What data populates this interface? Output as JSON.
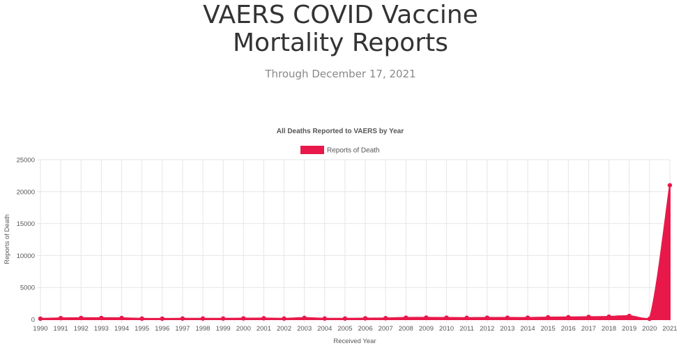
{
  "page": {
    "title_line1": "VAERS COVID Vaccine",
    "title_line2": "Mortality Reports",
    "subtitle": "Through December 17, 2021"
  },
  "colors": {
    "series": "#e8194a",
    "grid": "#e6e6e6",
    "text": "#555555"
  },
  "chart_data": {
    "type": "area",
    "title": "All Deaths Reported to VAERS by Year",
    "xlabel": "Received Year",
    "ylabel": "Reports of Death",
    "legend_position": "top-center",
    "grid": true,
    "ylim": [
      0,
      25000
    ],
    "y_ticks": [
      0,
      5000,
      10000,
      15000,
      20000,
      25000
    ],
    "categories": [
      "1990",
      "1991",
      "1992",
      "1993",
      "1994",
      "1995",
      "1996",
      "1997",
      "1998",
      "1999",
      "2000",
      "2001",
      "2002",
      "2003",
      "2004",
      "2005",
      "2006",
      "2007",
      "2008",
      "2009",
      "2010",
      "2011",
      "2012",
      "2013",
      "2014",
      "2015",
      "2016",
      "2017",
      "2018",
      "2019",
      "2020",
      "2021"
    ],
    "series": [
      {
        "name": "Reports of Death",
        "values": [
          120,
          200,
          230,
          230,
          220,
          130,
          120,
          140,
          140,
          140,
          160,
          180,
          140,
          240,
          140,
          140,
          170,
          190,
          270,
          280,
          270,
          250,
          270,
          270,
          270,
          330,
          350,
          390,
          430,
          540,
          100,
          21000
        ]
      }
    ]
  }
}
